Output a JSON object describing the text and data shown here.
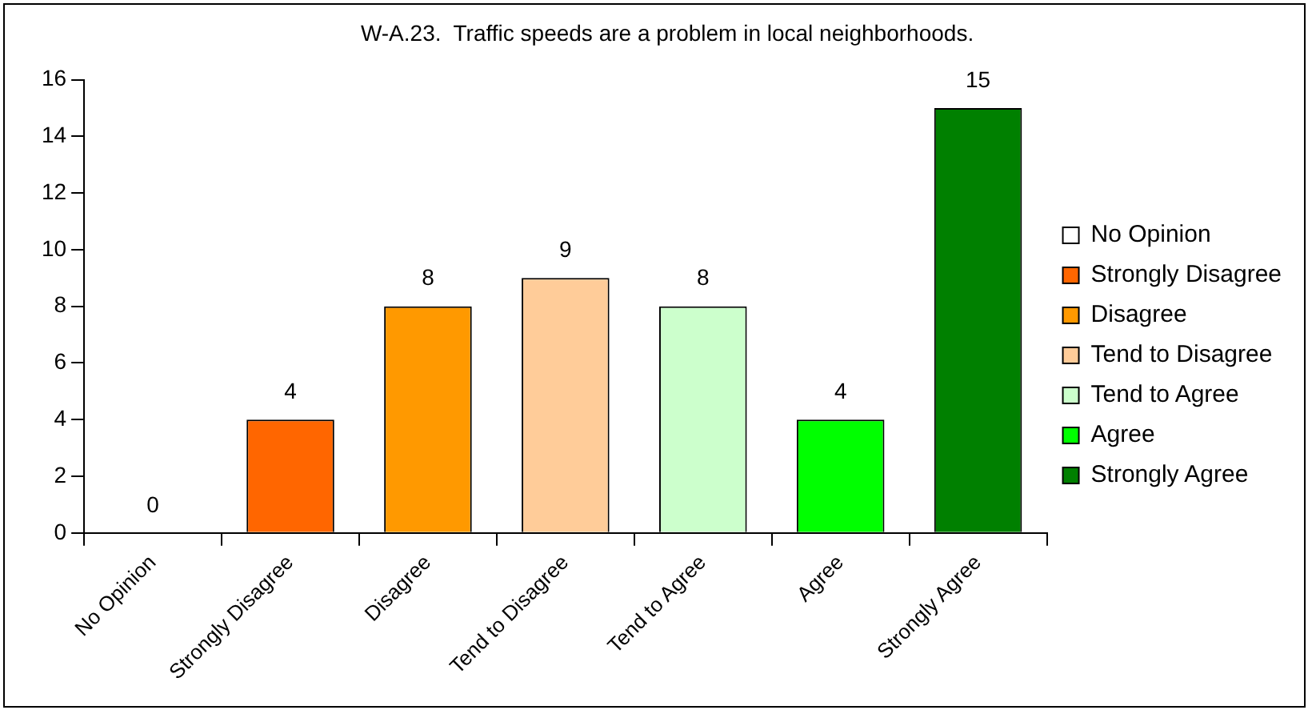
{
  "chart_data": {
    "type": "bar",
    "title": "W-A.23.  Traffic speeds are a problem in local neighborhoods.",
    "categories": [
      "No Opinion",
      "Strongly Disagree",
      "Disagree",
      "Tend to Disagree",
      "Tend to Agree",
      "Agree",
      "Strongly Agree"
    ],
    "series": [
      {
        "name": "No Opinion",
        "color": "#ffffff",
        "values": [
          0,
          null,
          null,
          null,
          null,
          null,
          null
        ]
      },
      {
        "name": "Strongly Disagree",
        "color": "#ff6600",
        "values": [
          null,
          4,
          null,
          null,
          null,
          null,
          null
        ]
      },
      {
        "name": "Disagree",
        "color": "#ff9900",
        "values": [
          null,
          null,
          8,
          null,
          null,
          null,
          null
        ]
      },
      {
        "name": "Tend to Disagree",
        "color": "#ffcc99",
        "values": [
          null,
          null,
          null,
          9,
          null,
          null,
          null
        ]
      },
      {
        "name": "Tend to Agree",
        "color": "#ccffcc",
        "values": [
          null,
          null,
          null,
          null,
          8,
          null,
          null
        ]
      },
      {
        "name": "Agree",
        "color": "#00ff00",
        "values": [
          null,
          null,
          null,
          null,
          null,
          4,
          null
        ]
      },
      {
        "name": "Strongly Agree",
        "color": "#008000",
        "values": [
          null,
          null,
          null,
          null,
          null,
          null,
          15
        ]
      }
    ],
    "ylim": [
      0,
      16
    ],
    "yticks": [
      0,
      2,
      4,
      6,
      8,
      10,
      12,
      14,
      16
    ],
    "data_labels": true,
    "grid": false,
    "legend": "right"
  }
}
